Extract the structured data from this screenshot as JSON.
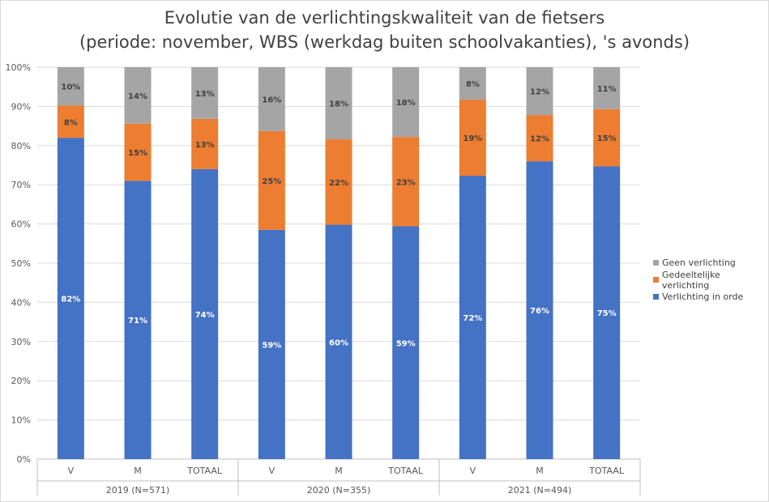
{
  "chart_data": {
    "type": "bar",
    "stacked": true,
    "title": "Evolutie van de verlichtingskwaliteit van de fietsers",
    "subtitle": "(periode: november, WBS (werkdag buiten schoolvakanties), 's avonds)",
    "xlabel": "",
    "ylabel": "",
    "ylim": [
      0,
      100
    ],
    "y_ticks": [
      "0%",
      "10%",
      "20%",
      "30%",
      "40%",
      "50%",
      "60%",
      "70%",
      "80%",
      "90%",
      "100%"
    ],
    "grid": true,
    "legend_position": "right",
    "categories": [
      "V",
      "M",
      "TOTAAL",
      "V",
      "M",
      "TOTAAL",
      "V",
      "M",
      "TOTAAL"
    ],
    "groups": [
      {
        "label": "2019 (N=571)",
        "count": 3
      },
      {
        "label": "2020 (N=355)",
        "count": 3
      },
      {
        "label": "2021 (N=494)",
        "count": 3
      }
    ],
    "series": [
      {
        "name": "Verlichting in orde",
        "color": "#4472c4",
        "values": [
          82,
          71,
          74,
          58.5,
          59.8,
          59.4,
          72.3,
          76,
          74.7
        ],
        "labels": [
          "82%",
          "71%",
          "74%",
          "59%",
          "60%",
          "59%",
          "72%",
          "76%",
          "75%"
        ],
        "label_color": "#ffffff"
      },
      {
        "name": "Gedeeltelijke verlichting",
        "color": "#ed7d31",
        "values": [
          8.2,
          14.6,
          12.8,
          25.2,
          21.8,
          22.8,
          19.4,
          11.8,
          14.6
        ],
        "labels": [
          "8%",
          "15%",
          "13%",
          "25%",
          "22%",
          "23%",
          "19%",
          "12%",
          "15%"
        ],
        "label_color": "#404040"
      },
      {
        "name": "Geen verlichting",
        "color": "#a5a5a5",
        "values": [
          9.8,
          14.4,
          13.2,
          16.3,
          18.4,
          17.8,
          8.3,
          12.2,
          10.7
        ],
        "labels": [
          "10%",
          "14%",
          "13%",
          "16%",
          "18%",
          "18%",
          "8%",
          "12%",
          "11%"
        ],
        "label_color": "#404040"
      }
    ]
  }
}
